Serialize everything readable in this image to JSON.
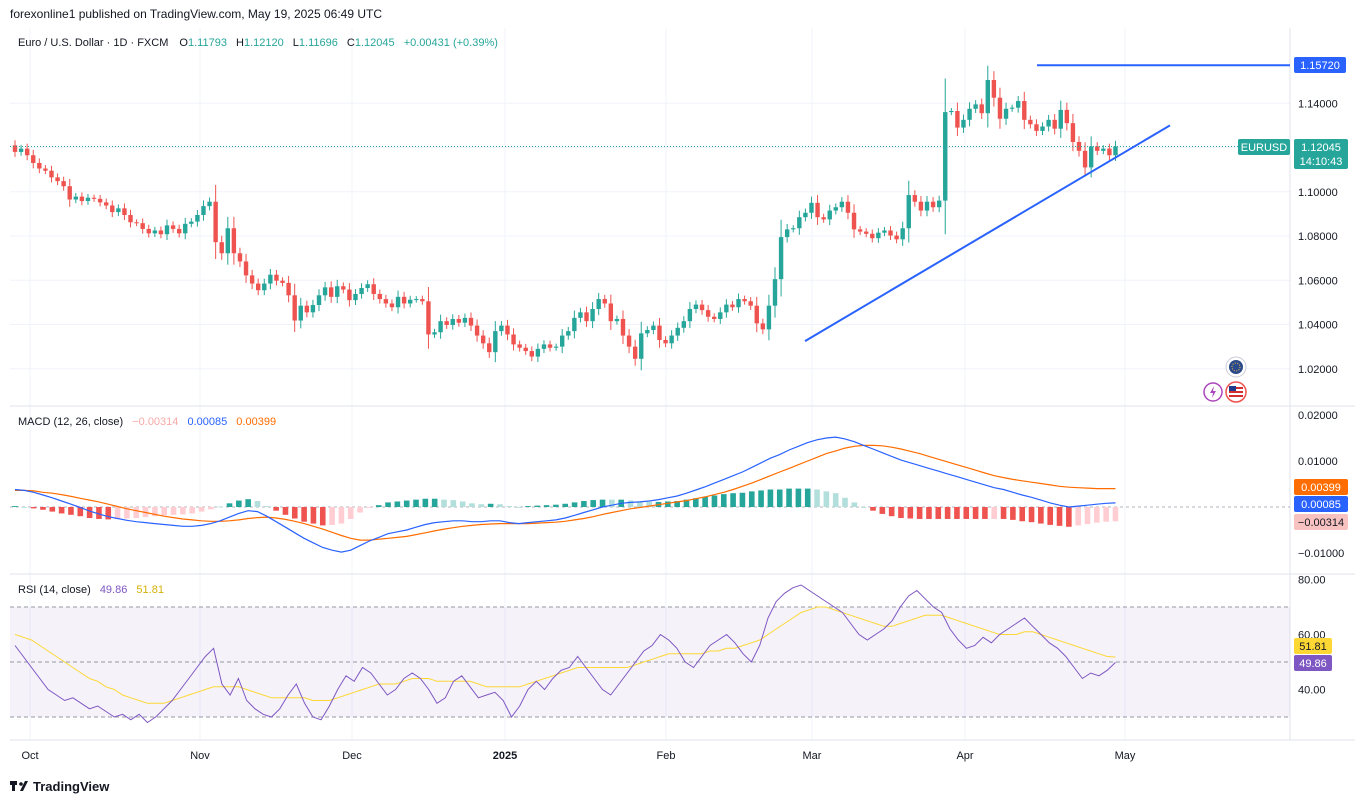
{
  "header": {
    "published": "forexonline1 published on TradingView.com, May 19, 2025 06:49 UTC"
  },
  "footer": {
    "brand": "TradingView"
  },
  "colors": {
    "up": "#26a69a",
    "down": "#ef5350",
    "trendline": "#2962ff",
    "macd": "#2962ff",
    "signal": "#ff6d00",
    "rsi": "#7e57c2",
    "rsi_ma": "#fdd835"
  },
  "legend": {
    "symbol": "Euro / U.S. Dollar · 1D · FXCM",
    "o_label": "O",
    "o": "1.11793",
    "h_label": "H",
    "h": "1.12120",
    "l_label": "L",
    "l": "1.11696",
    "c_label": "C",
    "c": "1.12045",
    "change": "+0.00431 (+0.39%)"
  },
  "macd_legend": {
    "title": "MACD (12, 26, close)",
    "hist": "−0.00314",
    "macd": "0.00085",
    "signal": "0.00399"
  },
  "rsi_legend": {
    "title": "RSI (14, close)",
    "rsi": "49.86",
    "ma": "51.81"
  },
  "badges": {
    "hline": "1.15720",
    "symbol": "EURUSD",
    "price": "1.12045",
    "countdown": "14:10:43",
    "macd_signal": "0.00399",
    "macd_line": "0.00085",
    "macd_hist": "−0.00314",
    "rsi_ma": "51.81",
    "rsi": "49.86"
  },
  "price_axis": [
    "1.14000",
    "1.12000",
    "1.10000",
    "1.08000",
    "1.06000",
    "1.04000",
    "1.02000"
  ],
  "macd_axis": [
    "0.02000",
    "0.01000",
    "−0.01000"
  ],
  "rsi_axis": [
    "80.00",
    "60.00",
    "40.00"
  ],
  "time_axis": [
    "Oct",
    "Nov",
    "Dec",
    "2025",
    "Feb",
    "Mar",
    "Apr",
    "May"
  ],
  "icons": [
    "economic-calendar-icon",
    "flash-icon",
    "us-flag-icon",
    "tradingview-logo-icon"
  ],
  "chart_data": {
    "type": "candlestick",
    "title": "Euro / U.S. Dollar · 1D · FXCM",
    "ylim": [
      1.01,
      1.162
    ],
    "last_close": 1.12045,
    "horizontal_line": 1.1572,
    "trendline": {
      "from": [
        "2025-02-28",
        1.0325
      ],
      "to": [
        "2025-05-05",
        1.13
      ]
    },
    "closes": [
      1.118,
      1.1195,
      1.1165,
      1.113,
      1.1105,
      1.1095,
      1.1065,
      1.1048,
      1.1025,
      1.0965,
      1.0978,
      1.0958,
      1.0973,
      1.0968,
      1.0952,
      1.0938,
      1.0908,
      1.0925,
      1.0895,
      1.0862,
      1.0858,
      1.0832,
      1.0812,
      1.0825,
      1.0808,
      1.0848,
      1.0832,
      1.0812,
      1.0855,
      1.0865,
      1.0895,
      1.0935,
      1.0955,
      1.0772,
      1.0722,
      1.0835,
      1.0722,
      1.0685,
      1.0622,
      1.0585,
      1.0555,
      1.0585,
      1.0625,
      1.0598,
      1.0588,
      1.0532,
      1.0418,
      1.0485,
      1.0455,
      1.0488,
      1.0532,
      1.0568,
      1.0525,
      1.0573,
      1.0558,
      1.051,
      1.0538,
      1.0565,
      1.0582,
      1.0538,
      1.0515,
      1.0495,
      1.0478,
      1.0525,
      1.0495,
      1.0512,
      1.0515,
      1.0505,
      1.0355,
      1.0365,
      1.0415,
      1.0398,
      1.0425,
      1.0408,
      1.043,
      1.0395,
      1.035,
      1.0315,
      1.0275,
      1.037,
      1.0395,
      1.0355,
      1.031,
      1.0295,
      1.028,
      1.0255,
      1.029,
      1.031,
      1.0295,
      1.03,
      1.035,
      1.037,
      1.043,
      1.0455,
      1.0415,
      1.047,
      1.0515,
      1.0495,
      1.0415,
      1.0425,
      1.035,
      1.03,
      1.0245,
      1.036,
      1.0375,
      1.0395,
      1.033,
      1.0315,
      1.035,
      1.0385,
      1.0415,
      1.047,
      1.049,
      1.0465,
      1.0435,
      1.0425,
      1.0455,
      1.049,
      1.0478,
      1.0515,
      1.0505,
      1.0485,
      1.0405,
      1.0378,
      1.0485,
      1.0605,
      1.0795,
      1.083,
      1.0835,
      1.0885,
      1.0905,
      1.095,
      1.0885,
      1.0875,
      1.0915,
      1.093,
      1.0955,
      1.0905,
      1.083,
      1.082,
      1.081,
      1.079,
      1.0815,
      1.0825,
      1.0802,
      1.0785,
      1.0835,
      1.0985,
      1.0955,
      1.0915,
      1.0955,
      1.093,
      1.096,
      1.136,
      1.1365,
      1.129,
      1.1325,
      1.1375,
      1.1395,
      1.1355,
      1.1505,
      1.1425,
      1.133,
      1.1375,
      1.138,
      1.141,
      1.1325,
      1.1305,
      1.1275,
      1.1295,
      1.1325,
      1.1285,
      1.137,
      1.131,
      1.1225,
      1.1185,
      1.111,
      1.1205,
      1.1185,
      1.1195,
      1.1165,
      1.12045
    ],
    "macd_line": [
      0.0038,
      0.0036,
      0.0032,
      0.0026,
      0.002,
      0.0013,
      0.0006,
      -0.0001,
      -0.0009,
      -0.0015,
      -0.0021,
      -0.0025,
      -0.0029,
      -0.0032,
      -0.0034,
      -0.0036,
      -0.0038,
      -0.004,
      -0.0042,
      -0.0042,
      -0.004,
      -0.0036,
      -0.003,
      -0.0022,
      -0.0014,
      -0.0008,
      -0.001,
      -0.002,
      -0.0032,
      -0.0044,
      -0.0056,
      -0.0068,
      -0.0078,
      -0.0088,
      -0.0094,
      -0.0098,
      -0.0094,
      -0.0084,
      -0.0074,
      -0.0066,
      -0.0058,
      -0.0054,
      -0.005,
      -0.0044,
      -0.0038,
      -0.0034,
      -0.0032,
      -0.003,
      -0.003,
      -0.0032,
      -0.0032,
      -0.003,
      -0.003,
      -0.0034,
      -0.0036,
      -0.0034,
      -0.0032,
      -0.003,
      -0.0028,
      -0.0024,
      -0.0018,
      -0.0012,
      -0.0006,
      0.0,
      0.0004,
      0.0008,
      0.001,
      0.0011,
      0.0013,
      0.0016,
      0.002,
      0.0024,
      0.003,
      0.0037,
      0.0044,
      0.0052,
      0.006,
      0.0068,
      0.0076,
      0.0086,
      0.0096,
      0.0106,
      0.0114,
      0.0124,
      0.0132,
      0.014,
      0.0146,
      0.015,
      0.0152,
      0.0148,
      0.0142,
      0.0134,
      0.0126,
      0.0118,
      0.011,
      0.0102,
      0.0096,
      0.009,
      0.0084,
      0.0078,
      0.0072,
      0.0066,
      0.006,
      0.0054,
      0.0048,
      0.0042,
      0.0038,
      0.0032,
      0.0026,
      0.0021,
      0.0015,
      0.0009,
      0.0004,
      0.0,
      0.0002,
      0.0004,
      0.0006,
      0.0008,
      0.0009
    ],
    "macd_signal": [
      0.0036,
      0.0036,
      0.0035,
      0.0032,
      0.003,
      0.0027,
      0.0023,
      0.0019,
      0.0015,
      0.0011,
      0.0006,
      0.0001,
      -0.0004,
      -0.0008,
      -0.0012,
      -0.0016,
      -0.002,
      -0.0023,
      -0.0026,
      -0.0028,
      -0.003,
      -0.0031,
      -0.0031,
      -0.003,
      -0.0028,
      -0.0025,
      -0.0023,
      -0.0022,
      -0.0024,
      -0.0027,
      -0.0031,
      -0.0036,
      -0.0042,
      -0.0048,
      -0.0055,
      -0.0062,
      -0.0068,
      -0.0072,
      -0.0072,
      -0.007,
      -0.0068,
      -0.0066,
      -0.0064,
      -0.006,
      -0.0056,
      -0.0052,
      -0.0048,
      -0.0045,
      -0.0042,
      -0.004,
      -0.0038,
      -0.0037,
      -0.0036,
      -0.0036,
      -0.0036,
      -0.0036,
      -0.0035,
      -0.0034,
      -0.0033,
      -0.0031,
      -0.0028,
      -0.0025,
      -0.0021,
      -0.0016,
      -0.0012,
      -0.0008,
      -0.0004,
      -0.0001,
      0.0002,
      0.0005,
      0.0008,
      0.0011,
      0.0014,
      0.0018,
      0.0022,
      0.0027,
      0.0032,
      0.0038,
      0.0045,
      0.0052,
      0.006,
      0.0068,
      0.0076,
      0.0084,
      0.0092,
      0.01,
      0.0108,
      0.0116,
      0.0122,
      0.0128,
      0.0132,
      0.0134,
      0.0134,
      0.0133,
      0.013,
      0.0126,
      0.0121,
      0.0116,
      0.011,
      0.0104,
      0.0098,
      0.0092,
      0.0086,
      0.008,
      0.0074,
      0.0068,
      0.0064,
      0.006,
      0.0057,
      0.0054,
      0.0051,
      0.0048,
      0.0045,
      0.0043,
      0.0042,
      0.0041,
      0.004,
      0.004,
      0.004
    ],
    "rsi": [
      56,
      52,
      48,
      44,
      40,
      38,
      36,
      37,
      35,
      33,
      34,
      32,
      30,
      31,
      29,
      31,
      28,
      30,
      33,
      36,
      40,
      44,
      48,
      52,
      55,
      42,
      38,
      44,
      36,
      33,
      31,
      30,
      33,
      38,
      42,
      35,
      30,
      29,
      34,
      40,
      45,
      43,
      48,
      46,
      42,
      38,
      40,
      44,
      46,
      44,
      40,
      35,
      37,
      43,
      45,
      41,
      37,
      38,
      39,
      36,
      30,
      34,
      40,
      43,
      40,
      44,
      47,
      48,
      52,
      48,
      44,
      40,
      38,
      42,
      46,
      50,
      54,
      56,
      60,
      58,
      55,
      50,
      48,
      52,
      56,
      58,
      60,
      57,
      53,
      50,
      56,
      66,
      72,
      75,
      77,
      78,
      76,
      74,
      72,
      70,
      68,
      64,
      60,
      58,
      60,
      62,
      65,
      70,
      74,
      76,
      73,
      70,
      68,
      62,
      58,
      55,
      56,
      59,
      57,
      60,
      62,
      64,
      66,
      63,
      60,
      57,
      55,
      52,
      48,
      44,
      46,
      45,
      47,
      49.86
    ],
    "rsi_ma": [
      60,
      59,
      58,
      56,
      54,
      52,
      50,
      48,
      46,
      44,
      43,
      41,
      40,
      38,
      37,
      36,
      35,
      35,
      35,
      36,
      37,
      38,
      39,
      40,
      41,
      41,
      41,
      41,
      40,
      39,
      38,
      37,
      37,
      37,
      37,
      37,
      36,
      36,
      36,
      37,
      38,
      39,
      40,
      41,
      42,
      42,
      42,
      43,
      44,
      44,
      44,
      43,
      43,
      43,
      43,
      43,
      42,
      41,
      41,
      41,
      41,
      41,
      42,
      43,
      44,
      45,
      46,
      47,
      48,
      48,
      48,
      48,
      48,
      48,
      48,
      49,
      50,
      51,
      52,
      53,
      53,
      53,
      53,
      53,
      54,
      54,
      55,
      55,
      56,
      57,
      58,
      60,
      62,
      64,
      66,
      68,
      69,
      70,
      70,
      69,
      68,
      67,
      66,
      65,
      64,
      63,
      63,
      64,
      65,
      66,
      67,
      67,
      67,
      66,
      65,
      64,
      63,
      62,
      61,
      60,
      60,
      60,
      61,
      61,
      60,
      59,
      58,
      57,
      56,
      55,
      54,
      53,
      52,
      51.81
    ]
  }
}
